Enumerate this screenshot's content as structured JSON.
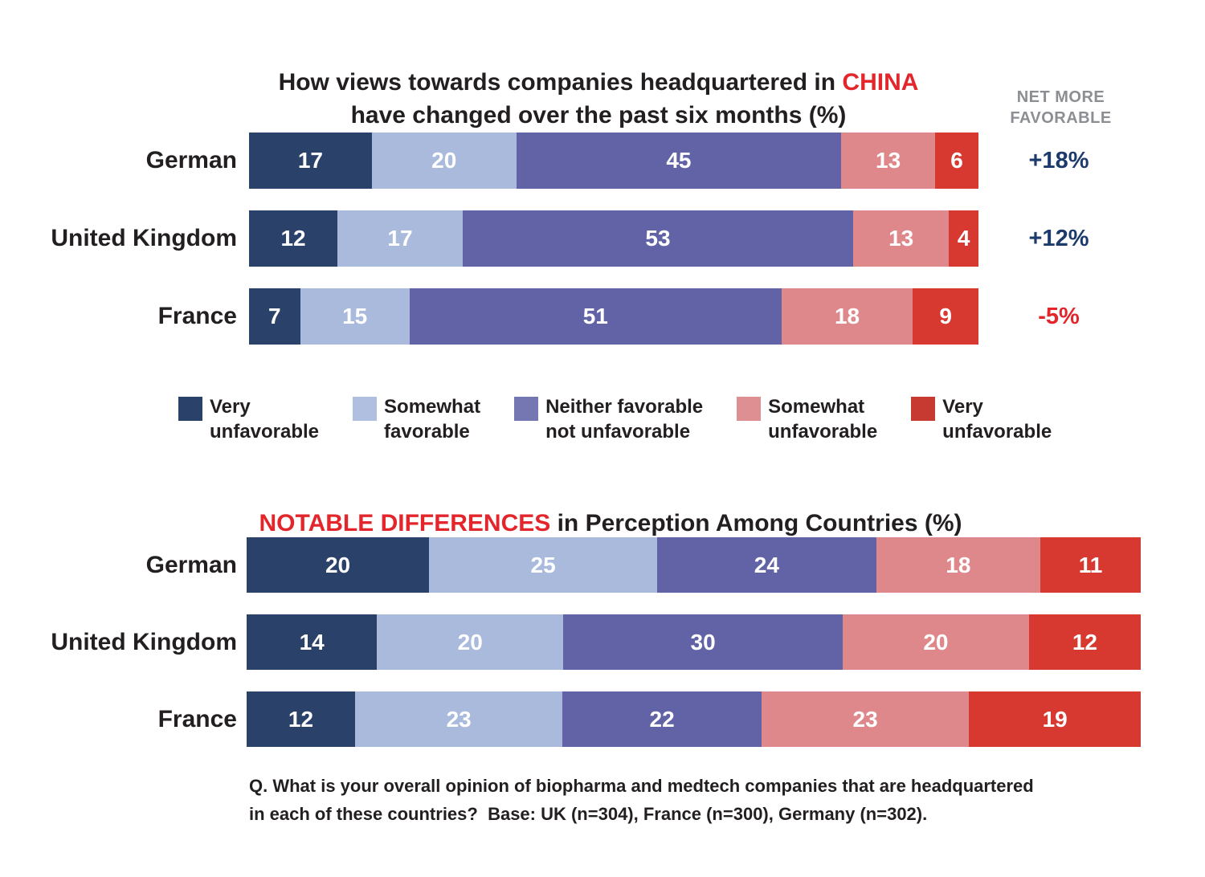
{
  "colors": {
    "accent_red": "#e2262b",
    "net_positive_navy": "#1d3a6d",
    "net_negative_red": "#e2262b",
    "net_header_gray": "#8b8e92",
    "text_black": "#231f20",
    "bar_value_white": "#ffffff"
  },
  "chart_data": [
    {
      "id": "china-views",
      "type": "bar",
      "stacked": true,
      "orientation": "horizontal",
      "title": "How views towards companies headquartered in CHINA have changed over the past six months (%)",
      "title_display": {
        "prefix": "How views towards companies headquartered in ",
        "highlight": "CHINA",
        "line2": "have changed over the past six months (%)"
      },
      "categories": [
        "German",
        "United Kingdom",
        "France"
      ],
      "series": [
        {
          "name": "Very unfavorable",
          "color": "#2a4269",
          "values": [
            17,
            12,
            7
          ]
        },
        {
          "name": "Somewhat favorable",
          "color": "#a9badd",
          "values": [
            20,
            17,
            15
          ]
        },
        {
          "name": "Neither favorable not unfavorable",
          "color": "#6163a6",
          "values": [
            45,
            53,
            51
          ]
        },
        {
          "name": "Somewhat unfavorable",
          "color": "#de888c",
          "values": [
            13,
            13,
            18
          ]
        },
        {
          "name": "Very unfavorable",
          "color": "#d7382f",
          "values": [
            6,
            4,
            9
          ]
        }
      ],
      "net": {
        "header": "NET MORE FAVORABLE",
        "values": [
          "+18%",
          "+12%",
          "-5%"
        ],
        "colors": [
          "#1d3a6d",
          "#1d3a6d",
          "#e2262b"
        ]
      }
    },
    {
      "id": "notable-differences",
      "type": "bar",
      "stacked": true,
      "orientation": "horizontal",
      "title": "NOTABLE DIFFERENCES in Perception Among Countries (%)",
      "title_display": {
        "highlight": "NOTABLE DIFFERENCES",
        "suffix": " in Perception Among Countries (%)"
      },
      "categories": [
        "German",
        "United Kingdom",
        "France"
      ],
      "series": [
        {
          "name": "Very unfavorable",
          "color": "#2a4269",
          "values": [
            20,
            14,
            12
          ]
        },
        {
          "name": "Somewhat favorable",
          "color": "#a9badd",
          "values": [
            25,
            20,
            23
          ]
        },
        {
          "name": "Neither favorable not unfavorable",
          "color": "#6163a6",
          "values": [
            24,
            30,
            22
          ]
        },
        {
          "name": "Somewhat unfavorable",
          "color": "#de888c",
          "values": [
            18,
            20,
            23
          ]
        },
        {
          "name": "Very unfavorable",
          "color": "#d7382f",
          "values": [
            11,
            12,
            19
          ]
        }
      ]
    }
  ],
  "legend": {
    "items": [
      {
        "label": "Very\nunfavorable",
        "color": "#2a4269"
      },
      {
        "label": "Somewhat\nfavorable",
        "color": "#b0bfe0"
      },
      {
        "label": "Neither favorable\nnot unfavorable",
        "color": "#7577b2"
      },
      {
        "label": "Somewhat\nunfavorable",
        "color": "#dd8f92"
      },
      {
        "label": "Very\nunfavorable",
        "color": "#c63a32"
      }
    ]
  },
  "footnote": {
    "line1": "Q. What is your overall opinion of biopharma and medtech companies that are headquartered",
    "line2": "in each of these countries?  Base: UK (n=304), France (n=300), Germany (n=302)."
  }
}
